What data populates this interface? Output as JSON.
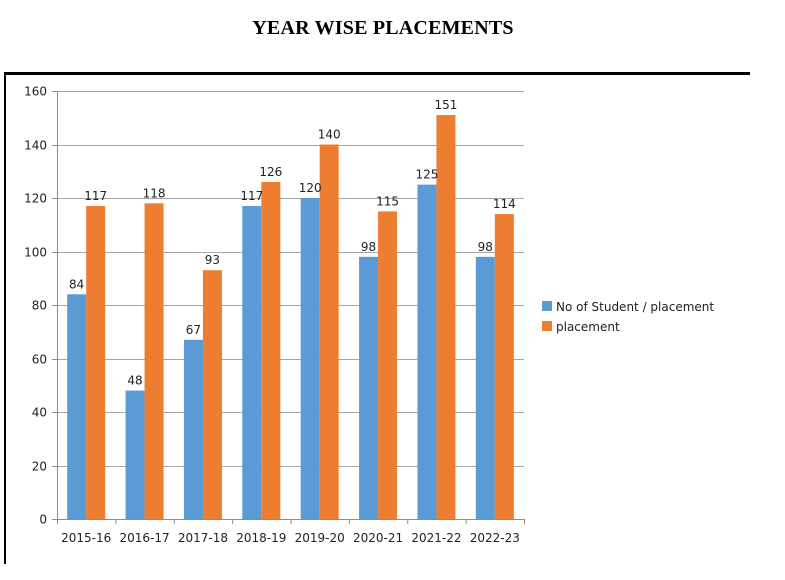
{
  "title": "YEAR WISE PLACEMENTS",
  "chart_data": {
    "type": "bar",
    "categories": [
      "2015-16",
      "2016-17",
      "2017-18",
      "2018-19",
      "2019-20",
      "2020-21",
      "2021-22",
      "2022-23"
    ],
    "series": [
      {
        "name": "No of Student / placement",
        "color": "#5b9bd5",
        "values": [
          84,
          48,
          67,
          117,
          120,
          98,
          125,
          98
        ]
      },
      {
        "name": "placement",
        "color": "#ed7d31",
        "values": [
          117,
          118,
          93,
          126,
          140,
          115,
          151,
          114
        ]
      }
    ],
    "yticks": [
      0,
      20,
      40,
      60,
      80,
      100,
      120,
      140,
      160
    ],
    "ylim": [
      0,
      160
    ],
    "grid": true,
    "legend_position": "right",
    "data_labels": true
  }
}
